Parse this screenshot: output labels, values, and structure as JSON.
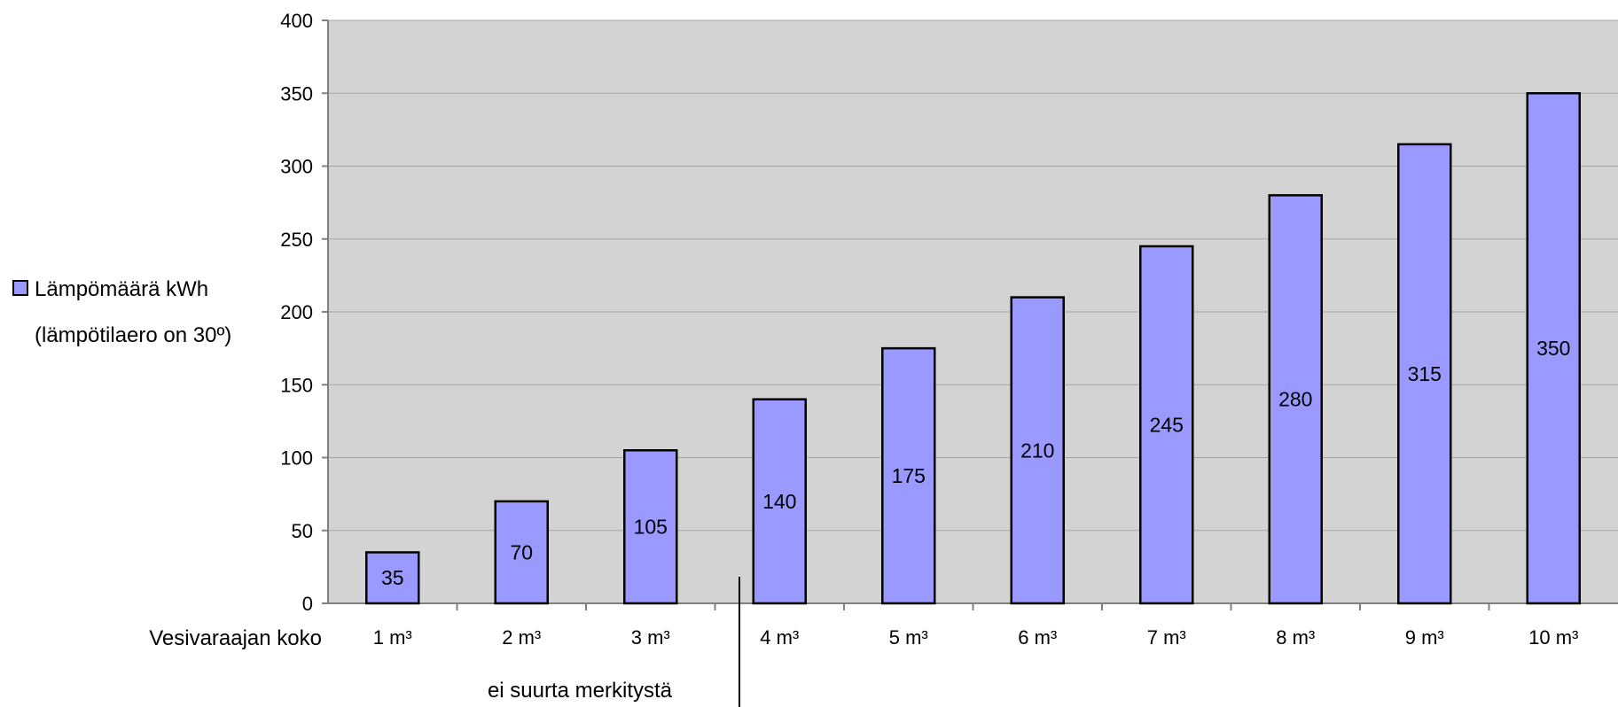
{
  "chart_data": {
    "type": "bar",
    "categories": [
      "1 m³",
      "2 m³",
      "3 m³",
      "4 m³",
      "5 m³",
      "6 m³",
      "7 m³",
      "8 m³",
      "9 m³",
      "10 m³"
    ],
    "series": [
      {
        "name": "Lämpömäärä kWh",
        "values": [
          35,
          70,
          105,
          140,
          175,
          210,
          245,
          280,
          315,
          350
        ]
      }
    ],
    "legend": {
      "line1": "Lämpömäärä kWh",
      "line2": "(lämpötilaero on 30º)",
      "placement": "left"
    },
    "xlabel": "Vesivaraajan koko",
    "ylim": [
      0,
      400
    ],
    "yticks": [
      0,
      50,
      100,
      150,
      200,
      250,
      300,
      350,
      400
    ],
    "grid": true,
    "annotation": "ei suurta merkitystä",
    "colors": {
      "plot_background": "#d3d3d3",
      "bar_fill": "#9999ff",
      "bar_stroke": "#000000",
      "grid": "#a6a6a6",
      "axis": "#808080"
    }
  }
}
